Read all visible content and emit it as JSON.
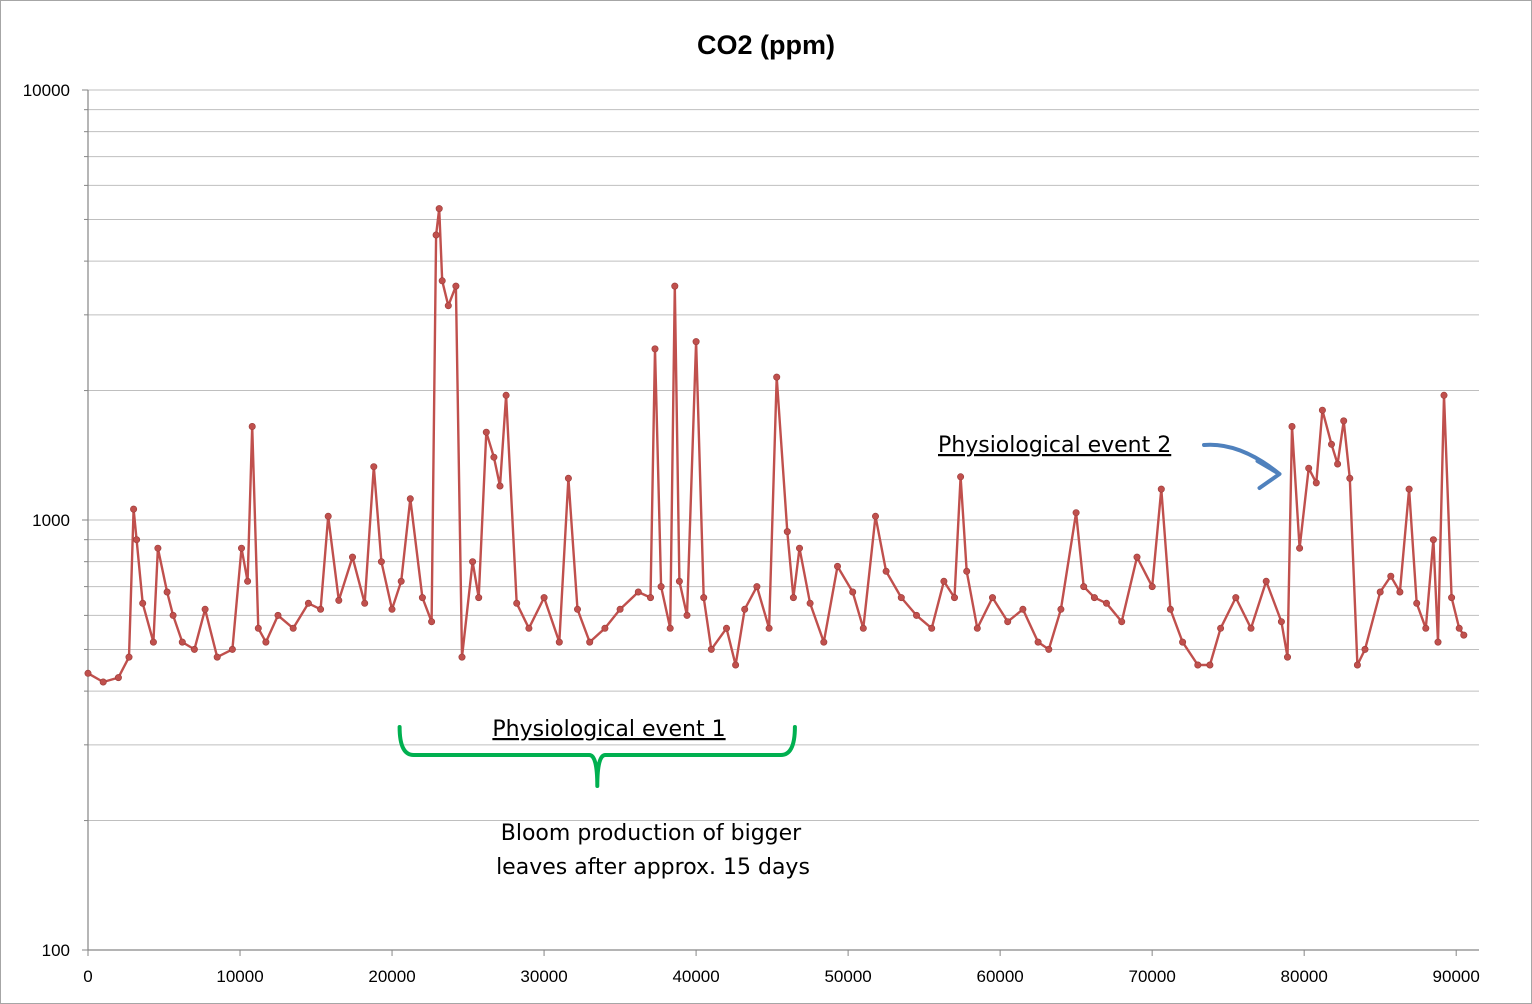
{
  "chart_data": {
    "type": "line",
    "title": "CO2 (ppm)",
    "xlabel": "",
    "ylabel": "",
    "y_scale": "log",
    "xlim": [
      0,
      91500
    ],
    "ylim": [
      100,
      10000
    ],
    "x_ticks": [
      0,
      10000,
      20000,
      30000,
      40000,
      50000,
      60000,
      70000,
      80000,
      90000
    ],
    "x_tick_labels": [
      "0",
      "10000",
      "20000",
      "30000",
      "40000",
      "50000",
      "60000",
      "70000",
      "80000",
      "90000"
    ],
    "y_ticks": [
      100,
      1000,
      10000
    ],
    "y_tick_labels": [
      "100",
      "1000",
      "10000"
    ],
    "grid": true,
    "legend": "none",
    "series_color": "#c0504d",
    "series": [
      {
        "x": [
          0,
          1000,
          2000,
          2700,
          3000,
          3200,
          3600,
          4300,
          4600,
          5200,
          5600,
          6200,
          7000,
          7700,
          8500,
          9500,
          10100,
          10500,
          10800,
          11200,
          11700,
          12500,
          13500,
          14500,
          15300,
          15800,
          16500,
          17400,
          18200,
          18800,
          19300,
          20000,
          20600,
          21200,
          22000,
          22600,
          22900,
          23100,
          23300,
          23700,
          24200,
          24600,
          25300,
          25700,
          26200,
          26700,
          27100,
          27500,
          28200,
          29000,
          30000,
          31000,
          31600,
          32200,
          33000,
          34000,
          35000,
          36200,
          37000,
          37300,
          37700,
          38300,
          38600,
          38900,
          39400,
          40000,
          40500,
          41000,
          42000,
          42600,
          43200,
          44000,
          44800,
          45300,
          46000,
          46400,
          46800,
          47500,
          48400,
          49300,
          50300,
          51000,
          51800,
          52500,
          53500,
          54500,
          55500,
          56300,
          57000,
          57400,
          57800,
          58500,
          59500,
          60500,
          61500,
          62500,
          63200,
          64000,
          65000,
          65500,
          66200,
          67000,
          68000,
          69000,
          70000,
          70600,
          71200,
          72000,
          73000,
          73800,
          74500,
          75500,
          76500,
          77500,
          78500,
          78900,
          79200,
          79700,
          80300,
          80800,
          81200,
          81800,
          82200,
          82600,
          83000,
          83500,
          84000,
          85000,
          85700,
          86300,
          86900,
          87400,
          88000,
          88500,
          88800,
          89200,
          89700,
          90200,
          90500
        ],
        "y": [
          440,
          420,
          430,
          480,
          1060,
          900,
          640,
          520,
          860,
          680,
          600,
          520,
          500,
          620,
          480,
          500,
          860,
          720,
          1650,
          560,
          520,
          600,
          560,
          640,
          620,
          1020,
          650,
          820,
          640,
          1330,
          800,
          620,
          720,
          1120,
          660,
          580,
          4600,
          5300,
          3600,
          3150,
          3500,
          480,
          800,
          660,
          1600,
          1400,
          1200,
          1950,
          640,
          560,
          660,
          520,
          1250,
          620,
          520,
          560,
          620,
          680,
          660,
          2500,
          700,
          560,
          3500,
          720,
          600,
          2600,
          660,
          500,
          560,
          460,
          620,
          700,
          560,
          2150,
          940,
          660,
          860,
          640,
          520,
          780,
          680,
          560,
          1020,
          760,
          660,
          600,
          560,
          720,
          660,
          1260,
          760,
          560,
          660,
          580,
          620,
          520,
          500,
          620,
          1040,
          700,
          660,
          640,
          580,
          820,
          700,
          1180,
          620,
          520,
          460,
          460,
          560,
          660,
          560,
          720,
          580,
          480,
          1650,
          860,
          1320,
          1220,
          1800,
          1500,
          1350,
          1700,
          1250,
          460,
          500,
          680,
          740,
          680,
          1180,
          640,
          560,
          900,
          520,
          1950,
          660,
          560,
          540
        ]
      }
    ],
    "annotations": [
      {
        "text": "Physiological event 2",
        "marker": "arrow",
        "color": "#4f81bd",
        "target": [
          78900,
          1350
        ]
      },
      {
        "text": "Physiological event 1",
        "marker": "curly-brace",
        "color": "#00b050",
        "x_range": [
          20500,
          46500
        ]
      },
      {
        "lines": [
          "Bloom production of bigger",
          "leaves after approx. 15 days"
        ]
      }
    ]
  }
}
